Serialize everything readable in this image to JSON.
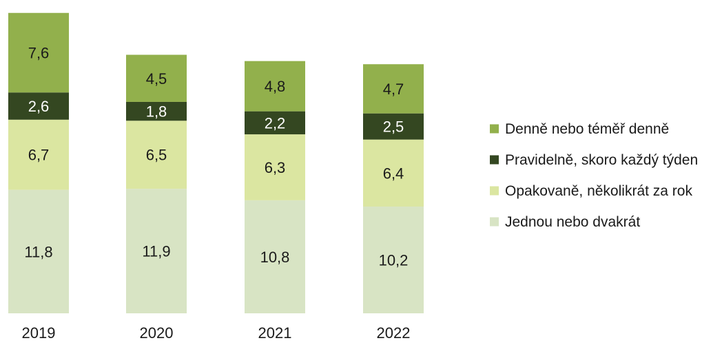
{
  "chart_data": {
    "type": "bar",
    "stacked": true,
    "categories": [
      "2019",
      "2020",
      "2021",
      "2022"
    ],
    "series": [
      {
        "name": "Jednou nebo dvakrát",
        "values": [
          11.8,
          11.9,
          10.8,
          10.2
        ],
        "labels": [
          "11,8",
          "11,9",
          "10,8",
          "10,2"
        ],
        "color": "#d8e4c4",
        "label_color": "#1a1a1a"
      },
      {
        "name": "Opakovaně, několikrát za rok",
        "values": [
          6.7,
          6.5,
          6.3,
          6.4
        ],
        "labels": [
          "6,7",
          "6,5",
          "6,3",
          "6,4"
        ],
        "color": "#dbe6a1",
        "label_color": "#1a1a1a"
      },
      {
        "name": "Pravidelně, skoro každý týden",
        "values": [
          2.6,
          1.8,
          2.2,
          2.5
        ],
        "labels": [
          "2,6",
          "1,8",
          "2,2",
          "2,5"
        ],
        "color": "#344721",
        "label_color": "#ffffff"
      },
      {
        "name": "Denně nebo téměř denně",
        "values": [
          7.6,
          4.5,
          4.8,
          4.7
        ],
        "labels": [
          "7,6",
          "4,5",
          "4,8",
          "4,7"
        ],
        "color": "#92b04c",
        "label_color": "#1a1a1a"
      }
    ],
    "title": "",
    "xlabel": "",
    "ylabel": "",
    "ylim": [
      0,
      29
    ],
    "grid": false,
    "legend_position": "right",
    "legend_order": [
      "Denně nebo téměř denně",
      "Pravidelně, skoro každý týden",
      "Opakovaně, několikrát za rok",
      "Jednou nebo dvakrát"
    ]
  }
}
